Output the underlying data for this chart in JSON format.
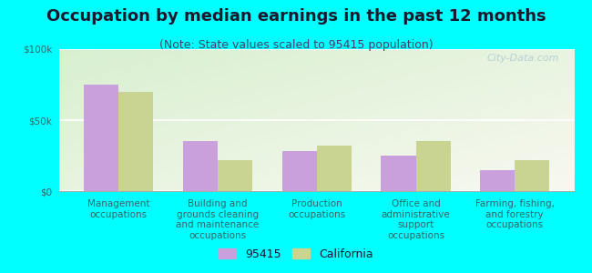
{
  "title": "Occupation by median earnings in the past 12 months",
  "subtitle": "(Note: State values scaled to 95415 population)",
  "categories": [
    "Management\noccupations",
    "Building and\ngrounds cleaning\nand maintenance\noccupations",
    "Production\noccupations",
    "Office and\nadministrative\nsupport\noccupations",
    "Farming, fishing,\nand forestry\noccupations"
  ],
  "values_95415": [
    75000,
    35000,
    28000,
    25000,
    15000
  ],
  "values_california": [
    70000,
    22000,
    32000,
    35000,
    22000
  ],
  "color_95415": "#c9a0dc",
  "color_california": "#c8d490",
  "background_outer": "#00ffff",
  "background_plot_topleft": "#d8f0d0",
  "background_plot_bottomright": "#f8f8f0",
  "ylim": [
    0,
    100000
  ],
  "yticks": [
    0,
    50000,
    100000
  ],
  "ytick_labels": [
    "$0",
    "$50k",
    "$100k"
  ],
  "bar_width": 0.35,
  "legend_label_95415": "95415",
  "legend_label_california": "California",
  "watermark": "City-Data.com",
  "title_fontsize": 13,
  "subtitle_fontsize": 9,
  "tick_label_fontsize": 7.5,
  "legend_fontsize": 9,
  "title_color": "#1a1a2e",
  "subtitle_color": "#444466",
  "tick_color": "#336666"
}
